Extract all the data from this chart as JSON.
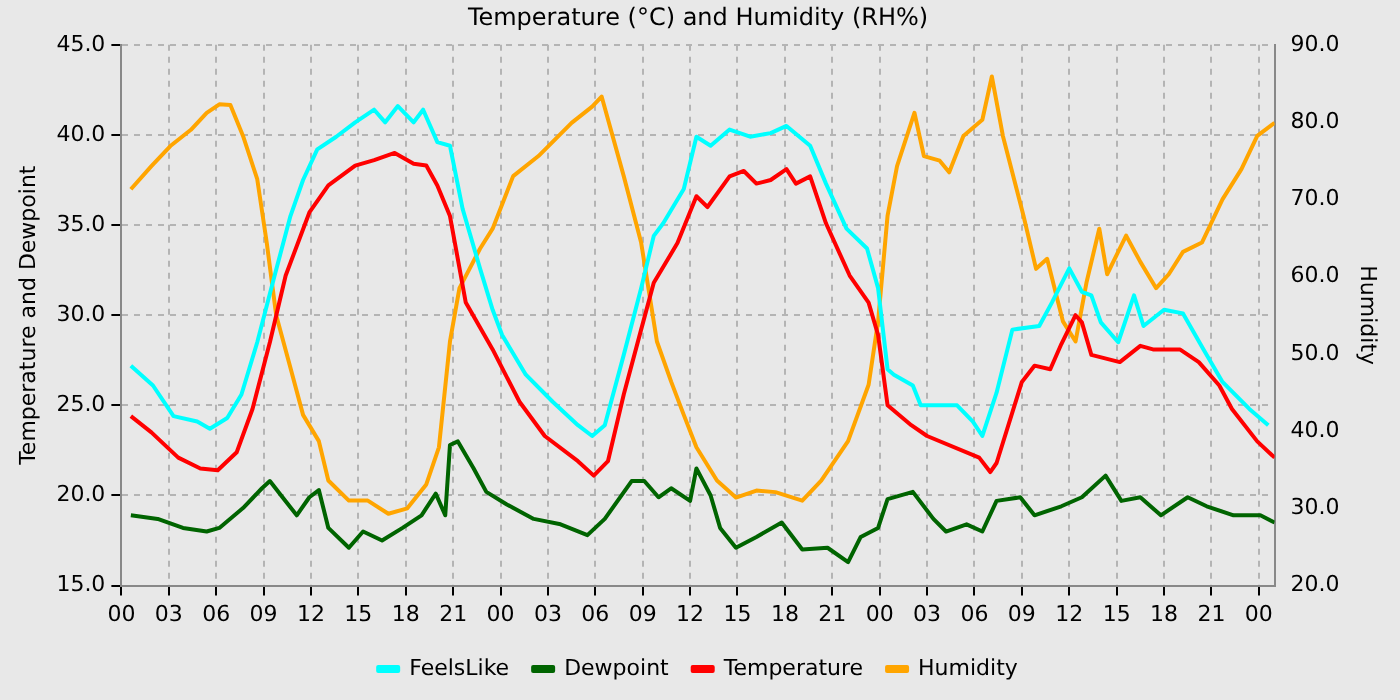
{
  "chart_data": {
    "type": "line",
    "title": "Temperature (°C) and Humidity (RH%)",
    "ylabel": "Temperature and Dewpoint",
    "y2label": "Humidity",
    "xlim": [
      0,
      73
    ],
    "xticks": [
      {
        "value": 0,
        "label": "00"
      },
      {
        "value": 3,
        "label": "03"
      },
      {
        "value": 6,
        "label": "06"
      },
      {
        "value": 9,
        "label": "09"
      },
      {
        "value": 12,
        "label": "12"
      },
      {
        "value": 15,
        "label": "15"
      },
      {
        "value": 18,
        "label": "18"
      },
      {
        "value": 21,
        "label": "21"
      },
      {
        "value": 24,
        "label": "00"
      },
      {
        "value": 27,
        "label": "03"
      },
      {
        "value": 30,
        "label": "06"
      },
      {
        "value": 33,
        "label": "09"
      },
      {
        "value": 36,
        "label": "12"
      },
      {
        "value": 39,
        "label": "15"
      },
      {
        "value": 42,
        "label": "18"
      },
      {
        "value": 45,
        "label": "21"
      },
      {
        "value": 48,
        "label": "00"
      },
      {
        "value": 51,
        "label": "03"
      },
      {
        "value": 54,
        "label": "06"
      },
      {
        "value": 57,
        "label": "09"
      },
      {
        "value": 60,
        "label": "12"
      },
      {
        "value": 63,
        "label": "15"
      },
      {
        "value": 66,
        "label": "18"
      },
      {
        "value": 69,
        "label": "21"
      },
      {
        "value": 72,
        "label": "00"
      }
    ],
    "ylim": [
      15,
      45
    ],
    "yticks": [
      {
        "value": 15,
        "label": "15.0"
      },
      {
        "value": 20,
        "label": "20.0"
      },
      {
        "value": 25,
        "label": "25.0"
      },
      {
        "value": 30,
        "label": "30.0"
      },
      {
        "value": 35,
        "label": "35.0"
      },
      {
        "value": 40,
        "label": "40.0"
      },
      {
        "value": 45,
        "label": "45.0"
      }
    ],
    "y2lim": [
      20,
      90
    ],
    "y2ticks": [
      {
        "value": 20,
        "label": "20.0"
      },
      {
        "value": 30,
        "label": "30.0"
      },
      {
        "value": 40,
        "label": "40.0"
      },
      {
        "value": 50,
        "label": "50.0"
      },
      {
        "value": 60,
        "label": "60.0"
      },
      {
        "value": 70,
        "label": "70.0"
      },
      {
        "value": 80,
        "label": "80.0"
      },
      {
        "value": 90,
        "label": "90.0"
      }
    ],
    "grid": true,
    "legend": "bottom",
    "marker": "none",
    "line_style": "solid",
    "series": [
      {
        "name": "FeelsLike",
        "color": "#00ffff",
        "x": [
          0.6,
          2.0,
          3.3,
          4.8,
          5.6,
          6.7,
          7.6,
          8.6,
          9.7,
          10.7,
          11.5,
          12.4,
          13.6,
          14.8,
          16.0,
          16.7,
          17.5,
          18.5,
          19.1,
          20.0,
          20.8,
          21.6,
          22.7,
          23.5,
          24.1,
          25.6,
          27.3,
          28.9,
          29.8,
          30.6,
          31.8,
          32.9,
          33.7,
          34.3,
          35.6,
          36.4,
          37.3,
          38.5,
          39.8,
          41.1,
          42.1,
          43.6,
          44.6,
          45.9,
          47.2,
          47.9,
          48.5,
          48.9,
          50.1,
          50.6,
          52.9,
          53.9,
          54.5,
          55.4,
          56.4,
          58.1,
          58.9,
          60.0,
          60.8,
          61.4,
          62.0,
          63.1,
          64.1,
          64.7,
          66.0,
          67.2,
          68.5,
          69.7,
          71.4,
          72.6
        ],
        "values": [
          27.2,
          26.1,
          24.4,
          24.1,
          23.7,
          24.3,
          25.6,
          28.5,
          32.2,
          35.5,
          37.5,
          39.2,
          39.9,
          40.7,
          41.4,
          40.7,
          41.6,
          40.7,
          41.4,
          39.6,
          39.4,
          35.9,
          32.6,
          30.3,
          28.9,
          26.7,
          25.2,
          23.9,
          23.3,
          23.9,
          27.8,
          31.5,
          34.4,
          35.1,
          37.0,
          39.9,
          39.4,
          40.3,
          39.9,
          40.1,
          40.5,
          39.4,
          37.3,
          34.8,
          33.7,
          31.5,
          27.0,
          26.7,
          26.1,
          25.0,
          25.0,
          24.1,
          23.3,
          25.7,
          29.2,
          29.4,
          30.7,
          32.6,
          31.3,
          31.1,
          29.6,
          28.5,
          31.1,
          29.4,
          30.3,
          30.1,
          28.1,
          26.3,
          24.8,
          23.9
        ]
      },
      {
        "name": "Dewpoint",
        "color": "#006400",
        "x": [
          0.6,
          2.3,
          3.9,
          5.4,
          6.2,
          7.7,
          8.9,
          9.4,
          10.2,
          11.1,
          11.9,
          12.5,
          13.1,
          14.4,
          15.3,
          16.5,
          17.8,
          19.0,
          19.9,
          20.5,
          20.8,
          21.3,
          22.3,
          23.1,
          24.4,
          26.1,
          27.8,
          29.5,
          30.6,
          32.3,
          33.1,
          34.0,
          34.8,
          36.0,
          36.4,
          37.3,
          37.9,
          38.9,
          40.2,
          41.8,
          43.1,
          44.7,
          46.0,
          46.8,
          47.9,
          48.5,
          50.1,
          51.4,
          52.2,
          53.5,
          54.5,
          55.4,
          56.9,
          57.8,
          59.5,
          60.8,
          62.3,
          63.3,
          64.5,
          65.8,
          67.5,
          68.7,
          70.4,
          72.1,
          73.0
        ],
        "values": [
          18.9,
          18.7,
          18.2,
          18.0,
          18.2,
          19.3,
          20.4,
          20.8,
          19.9,
          18.9,
          19.9,
          20.3,
          18.2,
          17.1,
          18.0,
          17.5,
          18.2,
          18.9,
          20.1,
          18.9,
          22.8,
          23.0,
          21.5,
          20.2,
          19.5,
          18.7,
          18.4,
          17.8,
          18.7,
          20.8,
          20.8,
          19.9,
          20.4,
          19.7,
          21.5,
          20.0,
          18.2,
          17.1,
          17.7,
          18.5,
          17.0,
          17.1,
          16.3,
          17.7,
          18.2,
          19.8,
          20.2,
          18.7,
          18.0,
          18.4,
          18.0,
          19.7,
          19.9,
          18.9,
          19.4,
          19.9,
          21.1,
          19.7,
          19.9,
          18.9,
          19.9,
          19.4,
          18.9,
          18.9,
          18.5
        ]
      },
      {
        "name": "Temperature",
        "color": "#ff0000",
        "x": [
          0.6,
          1.9,
          3.6,
          5.0,
          6.1,
          7.3,
          8.3,
          9.4,
          10.4,
          11.9,
          13.1,
          14.8,
          16.0,
          17.3,
          18.5,
          19.3,
          20.0,
          20.8,
          21.8,
          23.5,
          25.2,
          26.8,
          28.9,
          29.9,
          30.8,
          31.8,
          32.9,
          33.7,
          35.2,
          36.4,
          37.1,
          38.5,
          39.4,
          40.2,
          41.1,
          42.1,
          42.7,
          43.6,
          44.6,
          46.1,
          47.3,
          47.9,
          48.5,
          50.0,
          51.0,
          54.3,
          55.0,
          55.4,
          57.0,
          57.8,
          58.8,
          59.5,
          60.4,
          60.8,
          61.4,
          63.2,
          64.5,
          65.3,
          67.0,
          68.2,
          69.5,
          70.3,
          71.9,
          73.0
        ],
        "values": [
          24.4,
          23.5,
          22.1,
          21.5,
          21.4,
          22.4,
          24.8,
          28.5,
          32.2,
          35.7,
          37.2,
          38.3,
          38.6,
          39.0,
          38.4,
          38.3,
          37.2,
          35.5,
          30.7,
          28.1,
          25.2,
          23.3,
          21.9,
          21.1,
          21.9,
          25.6,
          29.2,
          31.8,
          34.0,
          36.6,
          36.0,
          37.7,
          38.0,
          37.3,
          37.5,
          38.1,
          37.3,
          37.7,
          35.1,
          32.2,
          30.7,
          28.9,
          25.0,
          23.9,
          23.3,
          22.1,
          21.3,
          21.8,
          26.3,
          27.2,
          27.0,
          28.4,
          30.0,
          29.6,
          27.8,
          27.4,
          28.3,
          28.1,
          28.1,
          27.4,
          26.1,
          24.8,
          23.0,
          22.1
        ]
      },
      {
        "name": "Humidity",
        "color": "#ffa500",
        "axis": "y2",
        "x": [
          0.6,
          1.9,
          3.1,
          4.4,
          5.4,
          6.2,
          6.9,
          7.7,
          8.6,
          9.2,
          9.8,
          10.7,
          11.5,
          12.5,
          13.1,
          14.4,
          15.6,
          16.9,
          18.1,
          19.3,
          20.1,
          20.8,
          21.4,
          22.7,
          23.5,
          24.8,
          26.4,
          28.5,
          29.8,
          30.4,
          31.8,
          32.9,
          33.9,
          34.8,
          35.6,
          36.4,
          37.7,
          38.9,
          40.2,
          41.4,
          43.1,
          44.3,
          46.0,
          47.3,
          47.9,
          48.5,
          49.1,
          50.2,
          50.8,
          51.8,
          52.4,
          53.3,
          54.5,
          55.1,
          55.8,
          57.1,
          57.9,
          58.6,
          59.6,
          60.4,
          61.1,
          61.9,
          62.4,
          63.6,
          64.5,
          65.5,
          66.3,
          67.2,
          68.4,
          69.7,
          70.9,
          71.9,
          73.0
        ],
        "values": [
          71.3,
          74.3,
          76.9,
          79.0,
          81.2,
          82.3,
          82.2,
          78.2,
          72.6,
          64.4,
          55.0,
          48.2,
          42.1,
          38.7,
          33.6,
          31.0,
          31.0,
          29.3,
          30.0,
          33.1,
          37.9,
          51.6,
          58.5,
          63.6,
          66.2,
          73.0,
          75.6,
          79.9,
          82.0,
          83.3,
          73.0,
          64.4,
          51.6,
          46.4,
          42.1,
          37.9,
          33.6,
          31.4,
          32.3,
          32.1,
          31.0,
          33.6,
          38.7,
          46.0,
          54.2,
          67.9,
          74.3,
          81.2,
          75.6,
          75.0,
          73.5,
          78.2,
          80.3,
          85.9,
          78.2,
          67.9,
          61.0,
          62.3,
          54.2,
          51.6,
          59.3,
          66.2,
          60.3,
          65.3,
          61.9,
          58.5,
          60.3,
          63.2,
          64.4,
          70.0,
          73.9,
          78.2,
          79.9
        ]
      }
    ]
  }
}
